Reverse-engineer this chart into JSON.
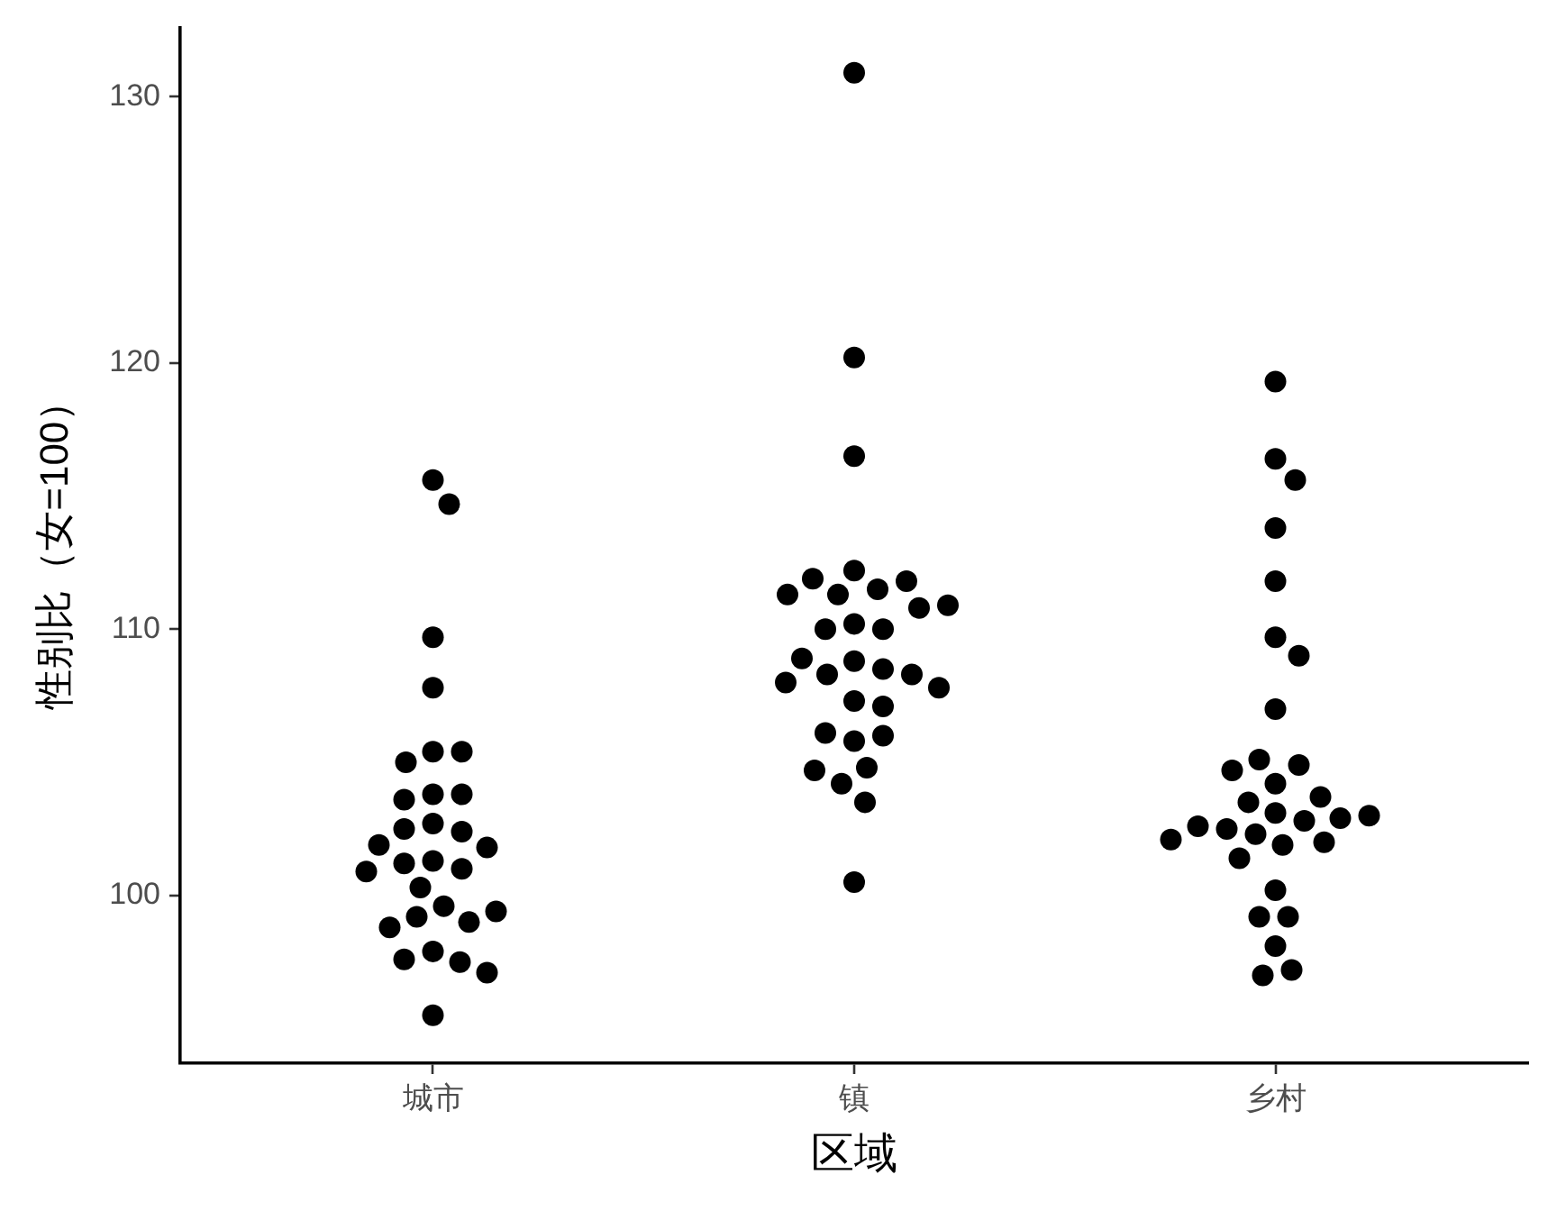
{
  "chart_data": {
    "type": "scatter",
    "xlabel": "区域",
    "ylabel": "性别比（女=100）",
    "categories": [
      "城市",
      "镇",
      "乡村"
    ],
    "series": [
      {
        "color": "#000000",
        "x": [
          "城市",
          "城市",
          "城市",
          "城市",
          "城市",
          "城市",
          "城市",
          "城市",
          "城市",
          "城市",
          "城市",
          "城市",
          "城市",
          "城市",
          "城市",
          "城市",
          "城市",
          "城市",
          "城市",
          "城市",
          "城市",
          "城市",
          "城市",
          "城市",
          "城市",
          "城市",
          "城市",
          "城市",
          "城市",
          "城市",
          "镇",
          "镇",
          "镇",
          "镇",
          "镇",
          "镇",
          "镇",
          "镇",
          "镇",
          "镇",
          "镇",
          "镇",
          "镇",
          "镇",
          "镇",
          "镇",
          "镇",
          "镇",
          "镇",
          "镇",
          "镇",
          "镇",
          "镇",
          "镇",
          "镇",
          "镇",
          "镇",
          "镇",
          "镇",
          "镇",
          "镇",
          "乡村",
          "乡村",
          "乡村",
          "乡村",
          "乡村",
          "乡村",
          "乡村",
          "乡村",
          "乡村",
          "乡村",
          "乡村",
          "乡村",
          "乡村",
          "乡村",
          "乡村",
          "乡村",
          "乡村",
          "乡村",
          "乡村",
          "乡村",
          "乡村",
          "乡村",
          "乡村",
          "乡村",
          "乡村",
          "乡村",
          "乡村",
          "乡村",
          "乡村",
          "乡村",
          "乡村"
        ],
        "values": [
          115.6,
          114.7,
          109.7,
          107.8,
          105.4,
          105.4,
          105.0,
          103.8,
          103.8,
          103.6,
          102.7,
          102.4,
          102.5,
          101.9,
          101.8,
          101.3,
          101.0,
          101.2,
          100.9,
          100.3,
          99.6,
          99.2,
          99.0,
          98.8,
          99.4,
          97.9,
          97.5,
          97.6,
          97.1,
          95.5,
          130.9,
          120.2,
          116.5,
          112.2,
          111.5,
          111.3,
          111.9,
          111.8,
          111.3,
          110.8,
          110.9,
          110.2,
          110.0,
          110.0,
          108.8,
          108.5,
          108.3,
          108.9,
          108.3,
          108.0,
          107.8,
          107.3,
          107.1,
          105.8,
          106.0,
          106.1,
          104.8,
          104.2,
          104.7,
          103.5,
          100.5,
          119.3,
          116.4,
          115.6,
          113.8,
          111.8,
          109.7,
          109.0,
          107.0,
          104.2,
          104.9,
          105.1,
          104.7,
          103.1,
          102.8,
          102.3,
          101.9,
          102.0,
          102.5,
          102.9,
          102.6,
          103.0,
          102.1,
          103.5,
          103.7,
          101.4,
          100.2,
          99.2,
          99.2,
          98.1,
          97.2,
          97.0
        ]
      }
    ],
    "marker": "circle",
    "ylim": [
      93.7,
      132.6
    ],
    "yticks": [
      100,
      110,
      120,
      130
    ],
    "grid": false,
    "legend": false
  }
}
